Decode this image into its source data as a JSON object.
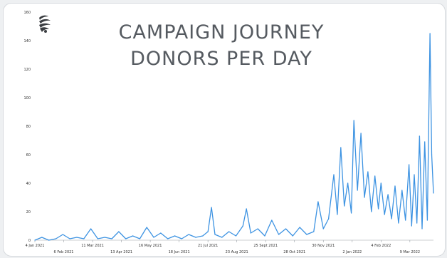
{
  "chart_data": {
    "type": "line",
    "title_lines": [
      "CAMPAIGN JOURNEY",
      "DONORS PER DAY"
    ],
    "xlabel": "",
    "ylabel": "",
    "ylim": [
      0,
      160
    ],
    "y_ticks": [
      0,
      20,
      40,
      60,
      80,
      100,
      120,
      140,
      160
    ],
    "x_range": [
      "2021-01-04",
      "2022-04-05"
    ],
    "x_ticks_top_row": [
      {
        "date": "2021-01-04",
        "label": "4 Jan 2021"
      },
      {
        "date": "2021-03-11",
        "label": "11 Mar 2021"
      },
      {
        "date": "2021-05-16",
        "label": "16 May 2021"
      },
      {
        "date": "2021-07-21",
        "label": "21 Jul 2021"
      },
      {
        "date": "2021-09-25",
        "label": "25 Sept 2021"
      },
      {
        "date": "2021-11-30",
        "label": "30 Nov 2021"
      },
      {
        "date": "2022-02-04",
        "label": "4 Feb 2022"
      }
    ],
    "x_ticks_bottom_row": [
      {
        "date": "2021-02-06",
        "label": "6 Feb 2021"
      },
      {
        "date": "2021-04-13",
        "label": "13 Apr 2021"
      },
      {
        "date": "2021-06-18",
        "label": "18 Jun 2021"
      },
      {
        "date": "2021-08-23",
        "label": "23 Aug 2021"
      },
      {
        "date": "2021-10-28",
        "label": "28 Oct 2021"
      },
      {
        "date": "2022-01-02",
        "label": "2 Jan 2022"
      },
      {
        "date": "2022-03-09",
        "label": "9 Mar 2022"
      }
    ],
    "grid": false,
    "legend": "none",
    "series": [
      {
        "color": "#3d93e2",
        "points": [
          [
            "2021-01-04",
            0
          ],
          [
            "2021-01-12",
            2
          ],
          [
            "2021-01-20",
            0
          ],
          [
            "2021-01-28",
            1
          ],
          [
            "2021-02-05",
            4
          ],
          [
            "2021-02-13",
            1
          ],
          [
            "2021-02-21",
            2
          ],
          [
            "2021-03-01",
            1
          ],
          [
            "2021-03-09",
            8
          ],
          [
            "2021-03-17",
            1
          ],
          [
            "2021-03-25",
            2
          ],
          [
            "2021-04-02",
            1
          ],
          [
            "2021-04-10",
            6
          ],
          [
            "2021-04-18",
            1
          ],
          [
            "2021-04-26",
            3
          ],
          [
            "2021-05-04",
            1
          ],
          [
            "2021-05-12",
            9
          ],
          [
            "2021-05-20",
            2
          ],
          [
            "2021-05-28",
            5
          ],
          [
            "2021-06-05",
            1
          ],
          [
            "2021-06-13",
            3
          ],
          [
            "2021-06-21",
            1
          ],
          [
            "2021-06-29",
            4
          ],
          [
            "2021-07-07",
            2
          ],
          [
            "2021-07-15",
            3
          ],
          [
            "2021-07-21",
            6
          ],
          [
            "2021-07-25",
            23
          ],
          [
            "2021-07-29",
            4
          ],
          [
            "2021-08-06",
            2
          ],
          [
            "2021-08-14",
            6
          ],
          [
            "2021-08-22",
            3
          ],
          [
            "2021-08-30",
            10
          ],
          [
            "2021-09-03",
            22
          ],
          [
            "2021-09-08",
            5
          ],
          [
            "2021-09-16",
            8
          ],
          [
            "2021-09-24",
            3
          ],
          [
            "2021-10-02",
            14
          ],
          [
            "2021-10-10",
            4
          ],
          [
            "2021-10-18",
            8
          ],
          [
            "2021-10-26",
            3
          ],
          [
            "2021-11-03",
            9
          ],
          [
            "2021-11-11",
            4
          ],
          [
            "2021-11-19",
            6
          ],
          [
            "2021-11-24",
            27
          ],
          [
            "2021-11-30",
            8
          ],
          [
            "2021-12-06",
            15
          ],
          [
            "2021-12-12",
            46
          ],
          [
            "2021-12-16",
            18
          ],
          [
            "2021-12-20",
            65
          ],
          [
            "2021-12-24",
            24
          ],
          [
            "2021-12-28",
            40
          ],
          [
            "2022-01-01",
            19
          ],
          [
            "2022-01-04",
            84
          ],
          [
            "2022-01-08",
            35
          ],
          [
            "2022-01-12",
            75
          ],
          [
            "2022-01-16",
            30
          ],
          [
            "2022-01-20",
            48
          ],
          [
            "2022-01-24",
            20
          ],
          [
            "2022-01-28",
            45
          ],
          [
            "2022-02-01",
            22
          ],
          [
            "2022-02-04",
            40
          ],
          [
            "2022-02-08",
            18
          ],
          [
            "2022-02-12",
            32
          ],
          [
            "2022-02-16",
            15
          ],
          [
            "2022-02-20",
            38
          ],
          [
            "2022-02-24",
            12
          ],
          [
            "2022-02-28",
            35
          ],
          [
            "2022-03-04",
            14
          ],
          [
            "2022-03-08",
            53
          ],
          [
            "2022-03-11",
            10
          ],
          [
            "2022-03-14",
            46
          ],
          [
            "2022-03-17",
            12
          ],
          [
            "2022-03-20",
            73
          ],
          [
            "2022-03-23",
            8
          ],
          [
            "2022-03-26",
            69
          ],
          [
            "2022-03-29",
            14
          ],
          [
            "2022-04-01",
            145
          ],
          [
            "2022-04-03",
            60
          ],
          [
            "2022-04-05",
            33
          ]
        ]
      }
    ]
  }
}
